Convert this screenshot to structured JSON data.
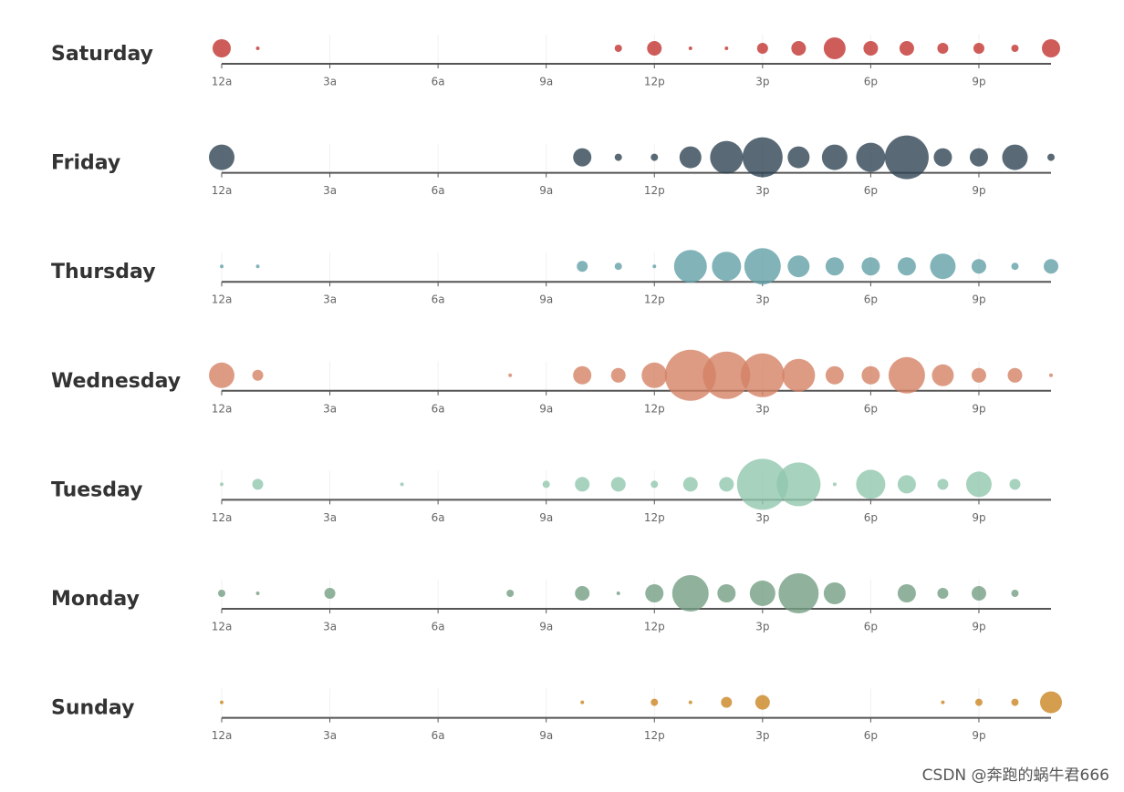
{
  "chart_data": {
    "type": "punchcard",
    "categories": [
      "12a",
      null,
      null,
      "3a",
      null,
      null,
      "6a",
      null,
      null,
      "9a",
      null,
      null,
      "12p",
      null,
      null,
      "3p",
      null,
      null,
      "6p",
      null,
      null,
      "9p",
      null,
      null
    ],
    "series": [
      {
        "name": "Saturday",
        "color": "#c23531",
        "values": [
          5,
          1,
          0,
          0,
          0,
          0,
          0,
          0,
          0,
          0,
          0,
          2,
          4,
          1,
          1,
          3,
          4,
          6,
          4,
          4,
          3,
          3,
          2,
          5
        ]
      },
      {
        "name": "Friday",
        "color": "#2f4554",
        "values": [
          7,
          0,
          0,
          0,
          0,
          0,
          0,
          0,
          0,
          0,
          5,
          2,
          2,
          6,
          9,
          11,
          6,
          7,
          8,
          12,
          5,
          5,
          7,
          2
        ]
      },
      {
        "name": "Thursday",
        "color": "#61a0a8",
        "values": [
          1,
          1,
          0,
          0,
          0,
          0,
          0,
          0,
          0,
          0,
          3,
          2,
          1,
          9,
          8,
          10,
          6,
          5,
          5,
          5,
          7,
          4,
          2,
          4
        ]
      },
      {
        "name": "Wednesday",
        "color": "#d48265",
        "values": [
          7,
          3,
          0,
          0,
          0,
          0,
          0,
          0,
          1,
          0,
          5,
          4,
          7,
          14,
          13,
          12,
          9,
          5,
          5,
          10,
          6,
          4,
          4,
          1
        ]
      },
      {
        "name": "Tuesday",
        "color": "#91c7ae",
        "values": [
          1,
          3,
          0,
          0,
          0,
          1,
          0,
          0,
          0,
          2,
          4,
          4,
          2,
          4,
          4,
          14,
          12,
          1,
          8,
          5,
          3,
          7,
          3,
          0
        ]
      },
      {
        "name": "Monday",
        "color": "#749f83",
        "values": [
          2,
          1,
          0,
          3,
          0,
          0,
          0,
          0,
          2,
          0,
          4,
          1,
          5,
          10,
          5,
          7,
          11,
          6,
          0,
          5,
          3,
          4,
          2,
          0
        ]
      },
      {
        "name": "Sunday",
        "color": "#ca8622",
        "values": [
          1,
          0,
          0,
          0,
          0,
          0,
          0,
          0,
          0,
          0,
          1,
          0,
          2,
          1,
          3,
          4,
          0,
          0,
          0,
          0,
          1,
          2,
          2,
          6
        ]
      }
    ]
  },
  "watermark": "CSDN @奔跑的蜗牛君666"
}
